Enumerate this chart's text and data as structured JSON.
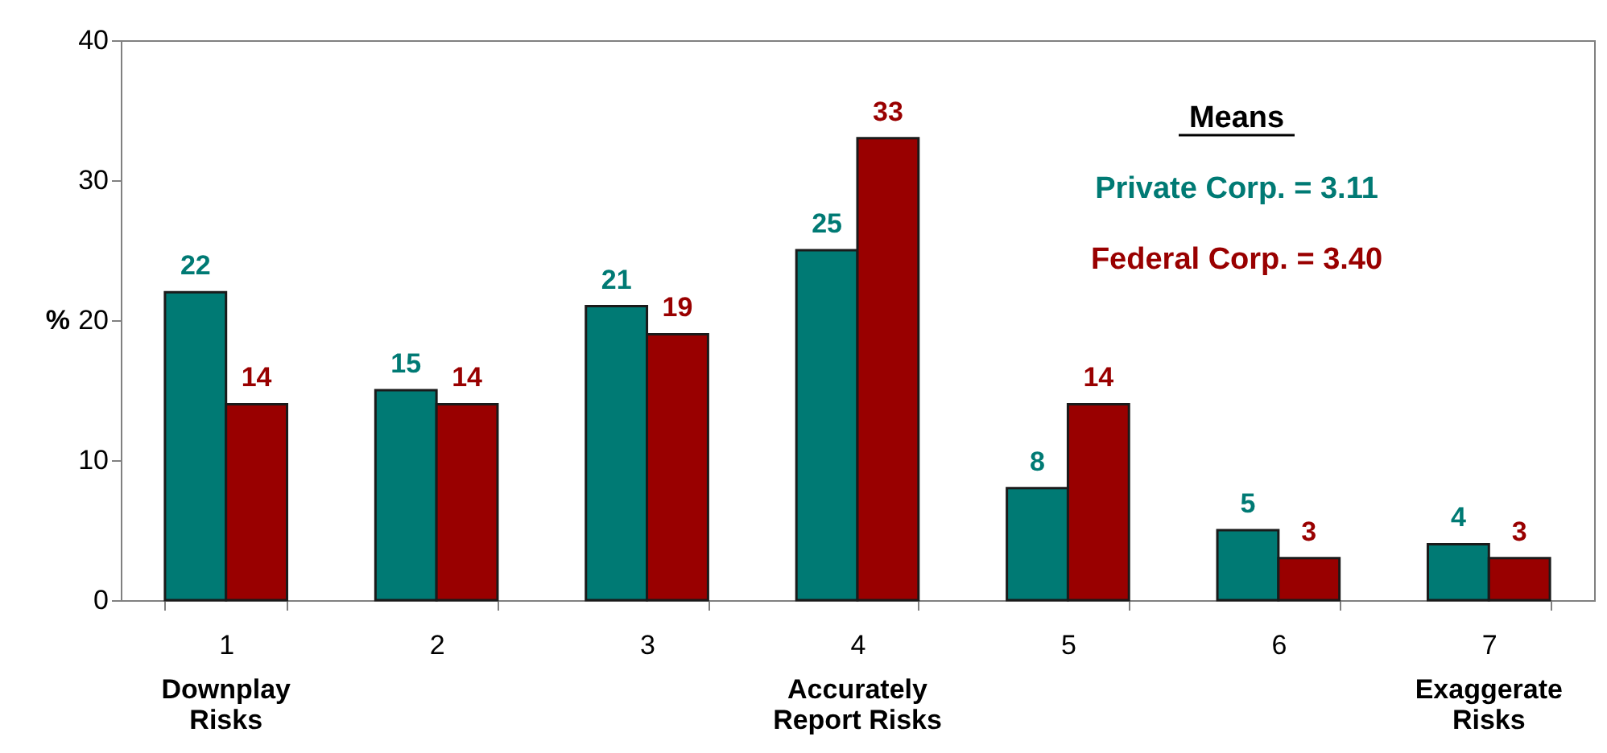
{
  "chart_data": {
    "type": "bar",
    "ylabel": "%",
    "categories": [
      "1\nDownplay\nRisks",
      "2",
      "3",
      "4\nAccurately\nReport Risks",
      "5",
      "6",
      "7\nExaggerate\nRisks"
    ],
    "series": [
      {
        "color": "#007a74",
        "values": [
          22,
          15,
          21,
          25,
          8,
          5,
          4
        ]
      },
      {
        "color": "#990000",
        "values": [
          14,
          14,
          19,
          33,
          14,
          3,
          3
        ]
      }
    ],
    "ylim": [
      0,
      40
    ],
    "yticks": [
      0,
      10,
      20,
      30,
      40
    ],
    "grid": false,
    "data_labels": true,
    "annotations": [
      "Means",
      "Private Corp.  = 3.11",
      "Federal Corp. = 3.40"
    ]
  }
}
